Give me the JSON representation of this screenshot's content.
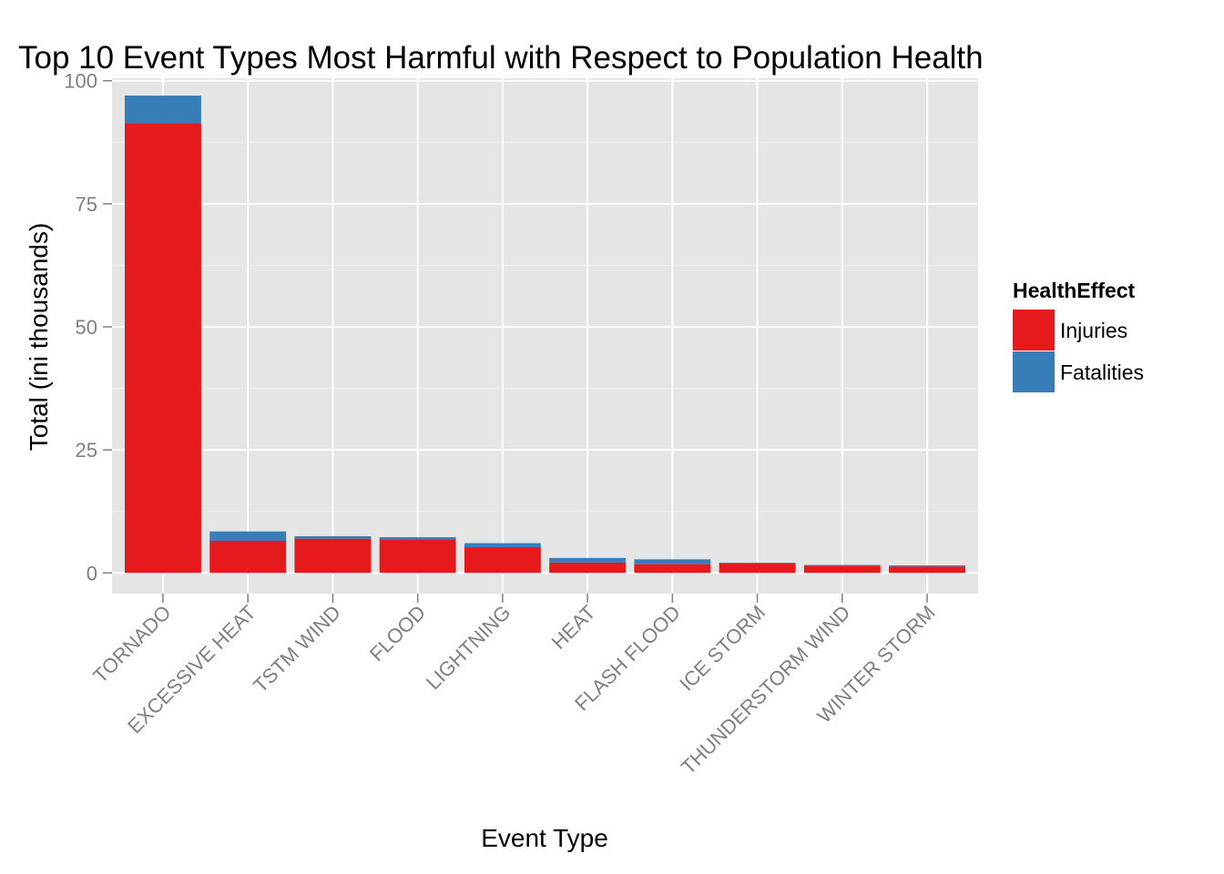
{
  "chart_data": {
    "type": "bar",
    "stacked": true,
    "title": "Top 10 Event Types Most Harmful with Respect to Population Health",
    "xlabel": "Event Type",
    "ylabel": "Total (ini thousands)",
    "ylim": [
      -4.2,
      100.5
    ],
    "yticks": [
      0,
      25,
      50,
      75,
      100
    ],
    "grid": true,
    "categories": [
      "TORNADO",
      "EXCESSIVE HEAT",
      "TSTM WIND",
      "FLOOD",
      "LIGHTNING",
      "HEAT",
      "FLASH FLOOD",
      "ICE STORM",
      "THUNDERSTORM WIND",
      "WINTER STORM"
    ],
    "series": [
      {
        "name": "Injuries",
        "color": "#E41A1C",
        "values": [
          91.35,
          6.53,
          6.96,
          6.79,
          5.23,
          2.1,
          1.78,
          1.98,
          1.49,
          1.32
        ]
      },
      {
        "name": "Fatalities",
        "color": "#377EB8",
        "values": [
          5.63,
          1.9,
          0.5,
          0.47,
          0.82,
          0.94,
          0.98,
          0.09,
          0.13,
          0.21
        ]
      }
    ],
    "legend": {
      "title": "HealthEffect",
      "position": "right"
    }
  }
}
